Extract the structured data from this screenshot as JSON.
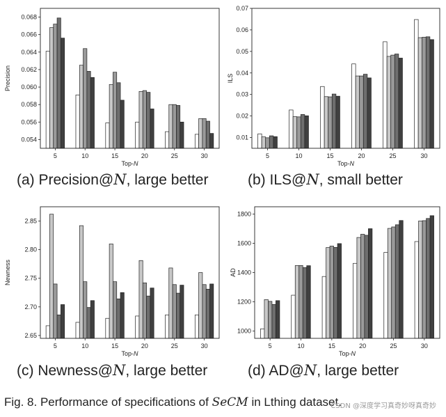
{
  "chart_data": [
    {
      "id": "a",
      "type": "bar",
      "ylabel": "Precision",
      "xlabel_prefix": "Top-",
      "xlabel_var": "N",
      "categories": [
        "5",
        "10",
        "15",
        "20",
        "25",
        "30"
      ],
      "ylim": [
        0.053,
        0.069
      ],
      "yticks": [
        "0.054",
        "0.056",
        "0.058",
        "0.060",
        "0.062",
        "0.064",
        "0.066",
        "0.068"
      ],
      "series": [
        {
          "name": "s1",
          "color": "#ffffff",
          "values": [
            0.0641,
            0.0591,
            0.0559,
            0.056,
            0.0549,
            0.0546
          ]
        },
        {
          "name": "s2",
          "color": "#c8c8c8",
          "values": [
            0.0668,
            0.0625,
            0.0603,
            0.0595,
            0.058,
            0.0564
          ]
        },
        {
          "name": "s3",
          "color": "#9a9a9a",
          "values": [
            0.0672,
            0.0644,
            0.0617,
            0.0596,
            0.058,
            0.0564
          ]
        },
        {
          "name": "s4",
          "color": "#6e6e6e",
          "values": [
            0.0679,
            0.0618,
            0.0605,
            0.0594,
            0.0579,
            0.0561
          ]
        },
        {
          "name": "s5",
          "color": "#404040",
          "values": [
            0.0656,
            0.0611,
            0.0585,
            0.0575,
            0.056,
            0.0547
          ]
        }
      ]
    },
    {
      "id": "b",
      "type": "bar",
      "ylabel": "ILS",
      "xlabel_prefix": "Top-",
      "xlabel_var": "N",
      "categories": [
        "5",
        "10",
        "15",
        "20",
        "25",
        "30"
      ],
      "ylim": [
        0.005,
        0.07
      ],
      "yticks": [
        "0.01",
        "0.02",
        "0.03",
        "0.04",
        "0.05",
        "0.06",
        "0.07"
      ],
      "series": [
        {
          "name": "s1",
          "color": "#ffffff",
          "values": [
            0.0117,
            0.0228,
            0.0337,
            0.0442,
            0.0545,
            0.0648
          ]
        },
        {
          "name": "s2",
          "color": "#c8c8c8",
          "values": [
            0.0103,
            0.0197,
            0.029,
            0.0386,
            0.0477,
            0.0564
          ]
        },
        {
          "name": "s3",
          "color": "#9a9a9a",
          "values": [
            0.0099,
            0.0196,
            0.0289,
            0.0386,
            0.0483,
            0.0566
          ]
        },
        {
          "name": "s4",
          "color": "#6e6e6e",
          "values": [
            0.0108,
            0.0207,
            0.0302,
            0.0394,
            0.0488,
            0.0568
          ]
        },
        {
          "name": "s5",
          "color": "#404040",
          "values": [
            0.0104,
            0.0201,
            0.0292,
            0.0377,
            0.0469,
            0.0555
          ]
        }
      ]
    },
    {
      "id": "c",
      "type": "bar",
      "ylabel": "Newness",
      "xlabel_prefix": "Top-",
      "xlabel_var": "N",
      "categories": [
        "5",
        "10",
        "15",
        "20",
        "25",
        "30"
      ],
      "ylim": [
        2.645,
        2.875
      ],
      "yticks": [
        "2.65",
        "2.70",
        "2.75",
        "2.80",
        "2.85"
      ],
      "series": [
        {
          "name": "s1",
          "color": "#ffffff",
          "values": [
            2.667,
            2.673,
            2.68,
            2.684,
            2.686,
            2.686
          ]
        },
        {
          "name": "s2",
          "color": "#c8c8c8",
          "values": [
            2.862,
            2.842,
            2.81,
            2.781,
            2.768,
            2.76
          ]
        },
        {
          "name": "s3",
          "color": "#9a9a9a",
          "values": [
            2.74,
            2.744,
            2.744,
            2.742,
            2.739,
            2.739
          ]
        },
        {
          "name": "s4",
          "color": "#6e6e6e",
          "values": [
            2.686,
            2.699,
            2.714,
            2.719,
            2.724,
            2.731
          ]
        },
        {
          "name": "s5",
          "color": "#404040",
          "values": [
            2.704,
            2.711,
            2.725,
            2.733,
            2.738,
            2.74
          ]
        }
      ]
    },
    {
      "id": "d",
      "type": "bar",
      "ylabel": "AD",
      "xlabel_prefix": "Top-",
      "xlabel_var": "N",
      "categories": [
        "5",
        "10",
        "15",
        "20",
        "25",
        "30"
      ],
      "ylim": [
        950,
        1850
      ],
      "yticks": [
        "1000",
        "1200",
        "1400",
        "1600",
        "1800"
      ],
      "series": [
        {
          "name": "s1",
          "color": "#ffffff",
          "values": [
            1015,
            1245,
            1373,
            1463,
            1538,
            1612
          ]
        },
        {
          "name": "s2",
          "color": "#c8c8c8",
          "values": [
            1215,
            1448,
            1571,
            1640,
            1702,
            1753
          ]
        },
        {
          "name": "s3",
          "color": "#9a9a9a",
          "values": [
            1203,
            1448,
            1581,
            1662,
            1712,
            1755
          ]
        },
        {
          "name": "s4",
          "color": "#6e6e6e",
          "values": [
            1182,
            1434,
            1572,
            1655,
            1727,
            1770
          ]
        },
        {
          "name": "s5",
          "color": "#404040",
          "values": [
            1208,
            1447,
            1598,
            1700,
            1756,
            1789
          ]
        }
      ]
    }
  ],
  "captions": {
    "a": {
      "prefix": "(a) Precision@",
      "var": "N",
      "suffix": ", large better"
    },
    "b": {
      "prefix": "(b) ILS@",
      "var": "N",
      "suffix": ", small better"
    },
    "c": {
      "prefix": "(c) Newness@",
      "var": "N",
      "suffix": ", large better"
    },
    "d": {
      "prefix": "(d) AD@",
      "var": "N",
      "suffix": ", large better"
    }
  },
  "figure_caption": {
    "prefix": "Fig. 8. Performance of specifications of ",
    "method": "SeCM",
    "suffix": " in Lthing dataset."
  },
  "watermark": "CSDN @深度学习真奇妙呀真奇妙"
}
